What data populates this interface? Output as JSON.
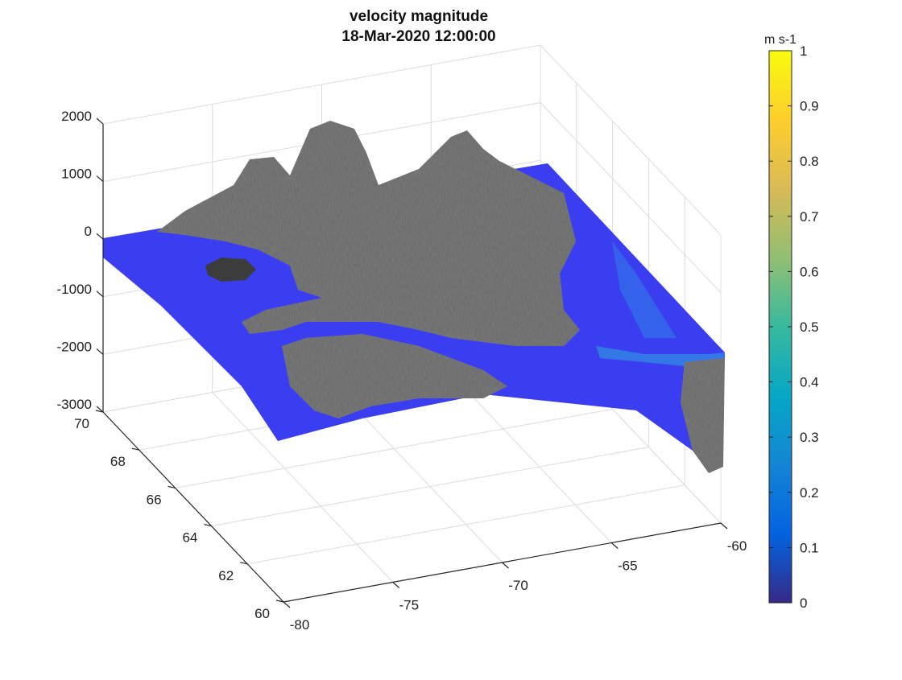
{
  "chart_data": {
    "type": "surface",
    "title": "velocity magnitude",
    "subtitle": "18-Mar-2020 12:00:00",
    "x_ticks": [
      -80,
      -75,
      -70,
      -65,
      -60
    ],
    "y_ticks": [
      60,
      62,
      64,
      66,
      68,
      70
    ],
    "z_ticks": [
      2000,
      1000,
      0,
      -1000,
      -2000,
      -3000
    ],
    "xlim": [
      -80,
      -60
    ],
    "ylim": [
      60,
      70
    ],
    "zlim": [
      -3000,
      2000
    ],
    "grid": true,
    "colorbar": {
      "label": "m s-1",
      "ticks": [
        1,
        0.9,
        0.8,
        0.7,
        0.6,
        0.5,
        0.4,
        0.3,
        0.2,
        0.1,
        0
      ],
      "range": [
        0,
        1
      ],
      "colormap": "parula",
      "colors": [
        "#352a87",
        "#0363e1",
        "#1485d4",
        "#06a7c6",
        "#38b99e",
        "#92bf73",
        "#d9ba56",
        "#fcce2e",
        "#f9fb0e"
      ]
    },
    "surface_colors": {
      "ocean": "#3a3df0",
      "ocean_fast": "#2fa8e0",
      "land": "#7a7a7a",
      "land_dark": "#3c3c3c"
    }
  }
}
